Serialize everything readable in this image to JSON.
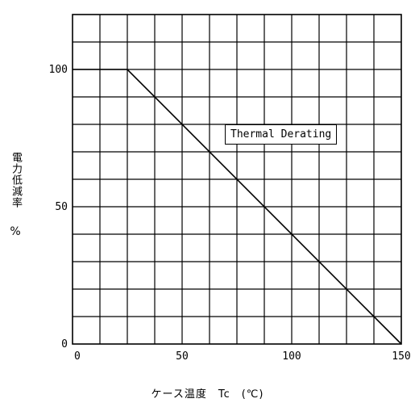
{
  "chart_data": {
    "type": "line",
    "xlabel": "ケース温度　Tc　(℃)",
    "ylabel": "電力低減率",
    "ylabel_unit": "%",
    "x_ticks": [
      "0",
      "50",
      "100",
      "150"
    ],
    "y_ticks": [
      "0",
      "50",
      "100"
    ],
    "xlim": [
      0,
      150
    ],
    "ylim": [
      0,
      120
    ],
    "grid": true,
    "series": [
      {
        "x": [
          0,
          25,
          150
        ],
        "y": [
          100,
          100,
          0
        ]
      }
    ],
    "annotations": [
      {
        "text": "Thermal Derating"
      }
    ]
  }
}
